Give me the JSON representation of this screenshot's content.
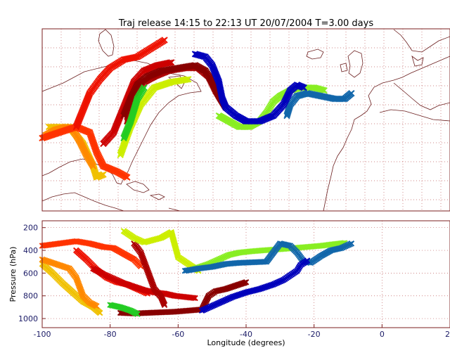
{
  "title": "Traj release 14:15 to 22:13 UT 20/07/2004    T=3.00 days",
  "chart_data": [
    {
      "type": "scatter",
      "panel": "map",
      "title": "Traj release 14:15 to 22:13 UT 20/07/2004    T=3.00 days",
      "xlim": [
        -100,
        20
      ],
      "ylim": [
        10,
        75
      ],
      "grid": true,
      "marker": "x",
      "series": [
        {
          "color": "#f0c000",
          "points": [
            [
              -98,
              40
            ],
            [
              -92,
              40
            ],
            [
              -88,
              34
            ],
            [
              -85,
              26
            ],
            [
              -84,
              22
            ],
            [
              -82,
              23
            ]
          ]
        },
        {
          "color": "#ff8800",
          "points": [
            [
              -99,
              37
            ],
            [
              -96,
              39
            ],
            [
              -93,
              40
            ],
            [
              -91,
              39
            ],
            [
              -89,
              35
            ],
            [
              -87,
              30
            ],
            [
              -85,
              26
            ]
          ]
        },
        {
          "color": "#ff3300",
          "points": [
            [
              -100,
              36
            ],
            [
              -95,
              38
            ],
            [
              -90,
              40
            ],
            [
              -86,
              38
            ],
            [
              -84,
              31
            ],
            [
              -82,
              26
            ],
            [
              -78,
              24
            ],
            [
              -75,
              22
            ]
          ]
        },
        {
          "color": "#ee1100",
          "points": [
            [
              -90,
              40
            ],
            [
              -88,
              46
            ],
            [
              -86,
              52
            ],
            [
              -83,
              57
            ],
            [
              -80,
              61
            ],
            [
              -76,
              64
            ],
            [
              -72,
              65
            ],
            [
              -68,
              68
            ],
            [
              -64,
              71
            ]
          ]
        },
        {
          "color": "#cc0000",
          "points": [
            [
              -82,
              34
            ],
            [
              -79,
              38
            ],
            [
              -77,
              44
            ],
            [
              -75,
              50
            ],
            [
              -73,
              56
            ],
            [
              -70,
              60
            ],
            [
              -66,
              62
            ],
            [
              -62,
              63
            ]
          ]
        },
        {
          "color": "#aa0000",
          "points": [
            [
              -75,
              42
            ],
            [
              -74,
              47
            ],
            [
              -72,
              52
            ],
            [
              -70,
              56
            ],
            [
              -67,
              58
            ],
            [
              -63,
              60
            ],
            [
              -58,
              61
            ],
            [
              -54,
              61
            ],
            [
              -51,
              58
            ],
            [
              -49,
              53
            ],
            [
              -46,
              47
            ]
          ]
        },
        {
          "color": "#880000",
          "points": [
            [
              -76,
              44
            ],
            [
              -74,
              50
            ],
            [
              -72,
              55
            ],
            [
              -69,
              58
            ],
            [
              -65,
              60
            ],
            [
              -60,
              61
            ],
            [
              -55,
              62
            ],
            [
              -52,
              60
            ],
            [
              -50,
              56
            ],
            [
              -48,
              51
            ],
            [
              -46,
              47
            ]
          ]
        },
        {
          "color": "#ccee00",
          "points": [
            [
              -77,
              30
            ],
            [
              -74,
              40
            ],
            [
              -71,
              48
            ],
            [
              -67,
              54
            ],
            [
              -62,
              56
            ],
            [
              -57,
              57
            ]
          ]
        },
        {
          "color": "#22cc22",
          "points": [
            [
              -76,
              36
            ],
            [
              -74,
              42
            ],
            [
              -72,
              50
            ],
            [
              -70,
              54
            ]
          ]
        },
        {
          "color": "#88ee22",
          "points": [
            [
              -48,
              44
            ],
            [
              -45,
              42
            ],
            [
              -42,
              40
            ],
            [
              -39,
              40
            ],
            [
              -36,
              42
            ],
            [
              -34,
              45
            ],
            [
              -32,
              49
            ],
            [
              -30,
              51
            ],
            [
              -27,
              53
            ],
            [
              -24,
              54
            ],
            [
              -20,
              54
            ],
            [
              -17,
              53
            ]
          ]
        },
        {
          "color": "#1166aa",
          "points": [
            [
              -28,
              44
            ],
            [
              -27,
              48
            ],
            [
              -25,
              51
            ],
            [
              -22,
              52
            ],
            [
              -18,
              51
            ],
            [
              -14,
              50
            ],
            [
              -11,
              50
            ],
            [
              -9,
              52
            ]
          ]
        },
        {
          "color": "#0000bb",
          "points": [
            [
              -55,
              66
            ],
            [
              -52,
              65
            ],
            [
              -50,
              62
            ],
            [
              -48,
              56
            ],
            [
              -47,
              50
            ],
            [
              -46,
              47
            ],
            [
              -43,
              44
            ],
            [
              -40,
              42
            ],
            [
              -36,
              42
            ],
            [
              -32,
              44
            ],
            [
              -29,
              48
            ],
            [
              -27,
              53
            ],
            [
              -25,
              55
            ],
            [
              -23,
              54
            ]
          ]
        }
      ]
    },
    {
      "type": "scatter",
      "panel": "pressure",
      "title": "",
      "xlabel": "Longitude  (degrees)",
      "ylabel": "Pressure  (hPa)",
      "xlim": [
        -100,
        20
      ],
      "ylim": [
        1080,
        140
      ],
      "x_ticks": [
        -100,
        -80,
        -60,
        -40,
        -20,
        0,
        20
      ],
      "y_ticks": [
        200,
        400,
        600,
        800,
        1000
      ],
      "grid": true,
      "marker": "x",
      "series": [
        {
          "color": "#f0c000",
          "points": [
            [
              -100,
              520
            ],
            [
              -97,
              600
            ],
            [
              -94,
              690
            ],
            [
              -91,
              770
            ],
            [
              -88,
              850
            ],
            [
              -85,
              900
            ],
            [
              -83,
              950
            ]
          ]
        },
        {
          "color": "#ff8800",
          "points": [
            [
              -100,
              480
            ],
            [
              -96,
              520
            ],
            [
              -92,
              560
            ],
            [
              -90,
              640
            ],
            [
              -89,
              720
            ],
            [
              -88,
              800
            ],
            [
              -86,
              860
            ],
            [
              -84,
              890
            ]
          ]
        },
        {
          "color": "#ff3300",
          "points": [
            [
              -100,
              360
            ],
            [
              -95,
              340
            ],
            [
              -90,
              320
            ],
            [
              -86,
              340
            ],
            [
              -82,
              370
            ],
            [
              -79,
              380
            ],
            [
              -76,
              430
            ],
            [
              -73,
              480
            ],
            [
              -71,
              540
            ]
          ]
        },
        {
          "color": "#ee1100",
          "points": [
            [
              -90,
              400
            ],
            [
              -87,
              480
            ],
            [
              -84,
              570
            ],
            [
              -81,
              640
            ],
            [
              -78,
              680
            ],
            [
              -75,
              700
            ],
            [
              -72,
              740
            ],
            [
              -69,
              780
            ]
          ]
        },
        {
          "color": "#cc0000",
          "points": [
            [
              -85,
              560
            ],
            [
              -82,
              610
            ],
            [
              -79,
              650
            ],
            [
              -76,
              690
            ],
            [
              -73,
              720
            ],
            [
              -70,
              750
            ],
            [
              -67,
              770
            ],
            [
              -64,
              780
            ],
            [
              -61,
              800
            ],
            [
              -58,
              810
            ],
            [
              -55,
              820
            ]
          ]
        },
        {
          "color": "#aa0000",
          "points": [
            [
              -73,
              340
            ],
            [
              -71,
              420
            ],
            [
              -70,
              500
            ],
            [
              -69,
              580
            ],
            [
              -68,
              660
            ],
            [
              -67,
              740
            ],
            [
              -65,
              810
            ],
            [
              -64,
              880
            ]
          ]
        },
        {
          "color": "#880000",
          "points": [
            [
              -77,
              950
            ],
            [
              -73,
              955
            ],
            [
              -69,
              950
            ],
            [
              -65,
              945
            ],
            [
              -61,
              940
            ],
            [
              -57,
              930
            ],
            [
              -53,
              920
            ],
            [
              -52,
              860
            ],
            [
              -51,
              800
            ],
            [
              -49,
              760
            ],
            [
              -46,
              740
            ],
            [
              -43,
              710
            ],
            [
              -40,
              680
            ]
          ]
        },
        {
          "color": "#ccee00",
          "points": [
            [
              -76,
              230
            ],
            [
              -73,
              290
            ],
            [
              -70,
              330
            ],
            [
              -65,
              290
            ],
            [
              -62,
              240
            ],
            [
              -60,
              460
            ],
            [
              -57,
              520
            ],
            [
              -54,
              580
            ]
          ]
        },
        {
          "color": "#22cc22",
          "points": [
            [
              -80,
              880
            ],
            [
              -77,
              900
            ],
            [
              -74,
              930
            ],
            [
              -72,
              960
            ]
          ]
        },
        {
          "color": "#88ee22",
          "points": [
            [
              -55,
              560
            ],
            [
              -51,
              520
            ],
            [
              -48,
              480
            ],
            [
              -45,
              440
            ],
            [
              -42,
              420
            ],
            [
              -39,
              410
            ],
            [
              -35,
              400
            ],
            [
              -30,
              390
            ],
            [
              -26,
              380
            ],
            [
              -22,
              370
            ],
            [
              -18,
              360
            ],
            [
              -14,
              345
            ],
            [
              -11,
              335
            ]
          ]
        },
        {
          "color": "#1166aa",
          "points": [
            [
              -58,
              580
            ],
            [
              -54,
              560
            ],
            [
              -50,
              545
            ],
            [
              -46,
              520
            ],
            [
              -42,
              510
            ],
            [
              -38,
              505
            ],
            [
              -34,
              500
            ],
            [
              -30,
              340
            ],
            [
              -27,
              360
            ],
            [
              -25,
              420
            ],
            [
              -23,
              500
            ],
            [
              -21,
              510
            ],
            [
              -18,
              450
            ],
            [
              -15,
              400
            ],
            [
              -12,
              380
            ],
            [
              -9,
              340
            ]
          ]
        },
        {
          "color": "#0000bb",
          "points": [
            [
              -53,
              930
            ],
            [
              -50,
              890
            ],
            [
              -47,
              850
            ],
            [
              -44,
              810
            ],
            [
              -40,
              770
            ],
            [
              -36,
              740
            ],
            [
              -32,
              700
            ],
            [
              -29,
              660
            ],
            [
              -27,
              620
            ],
            [
              -25,
              580
            ],
            [
              -24,
              530
            ],
            [
              -22,
              490
            ]
          ]
        }
      ]
    }
  ]
}
